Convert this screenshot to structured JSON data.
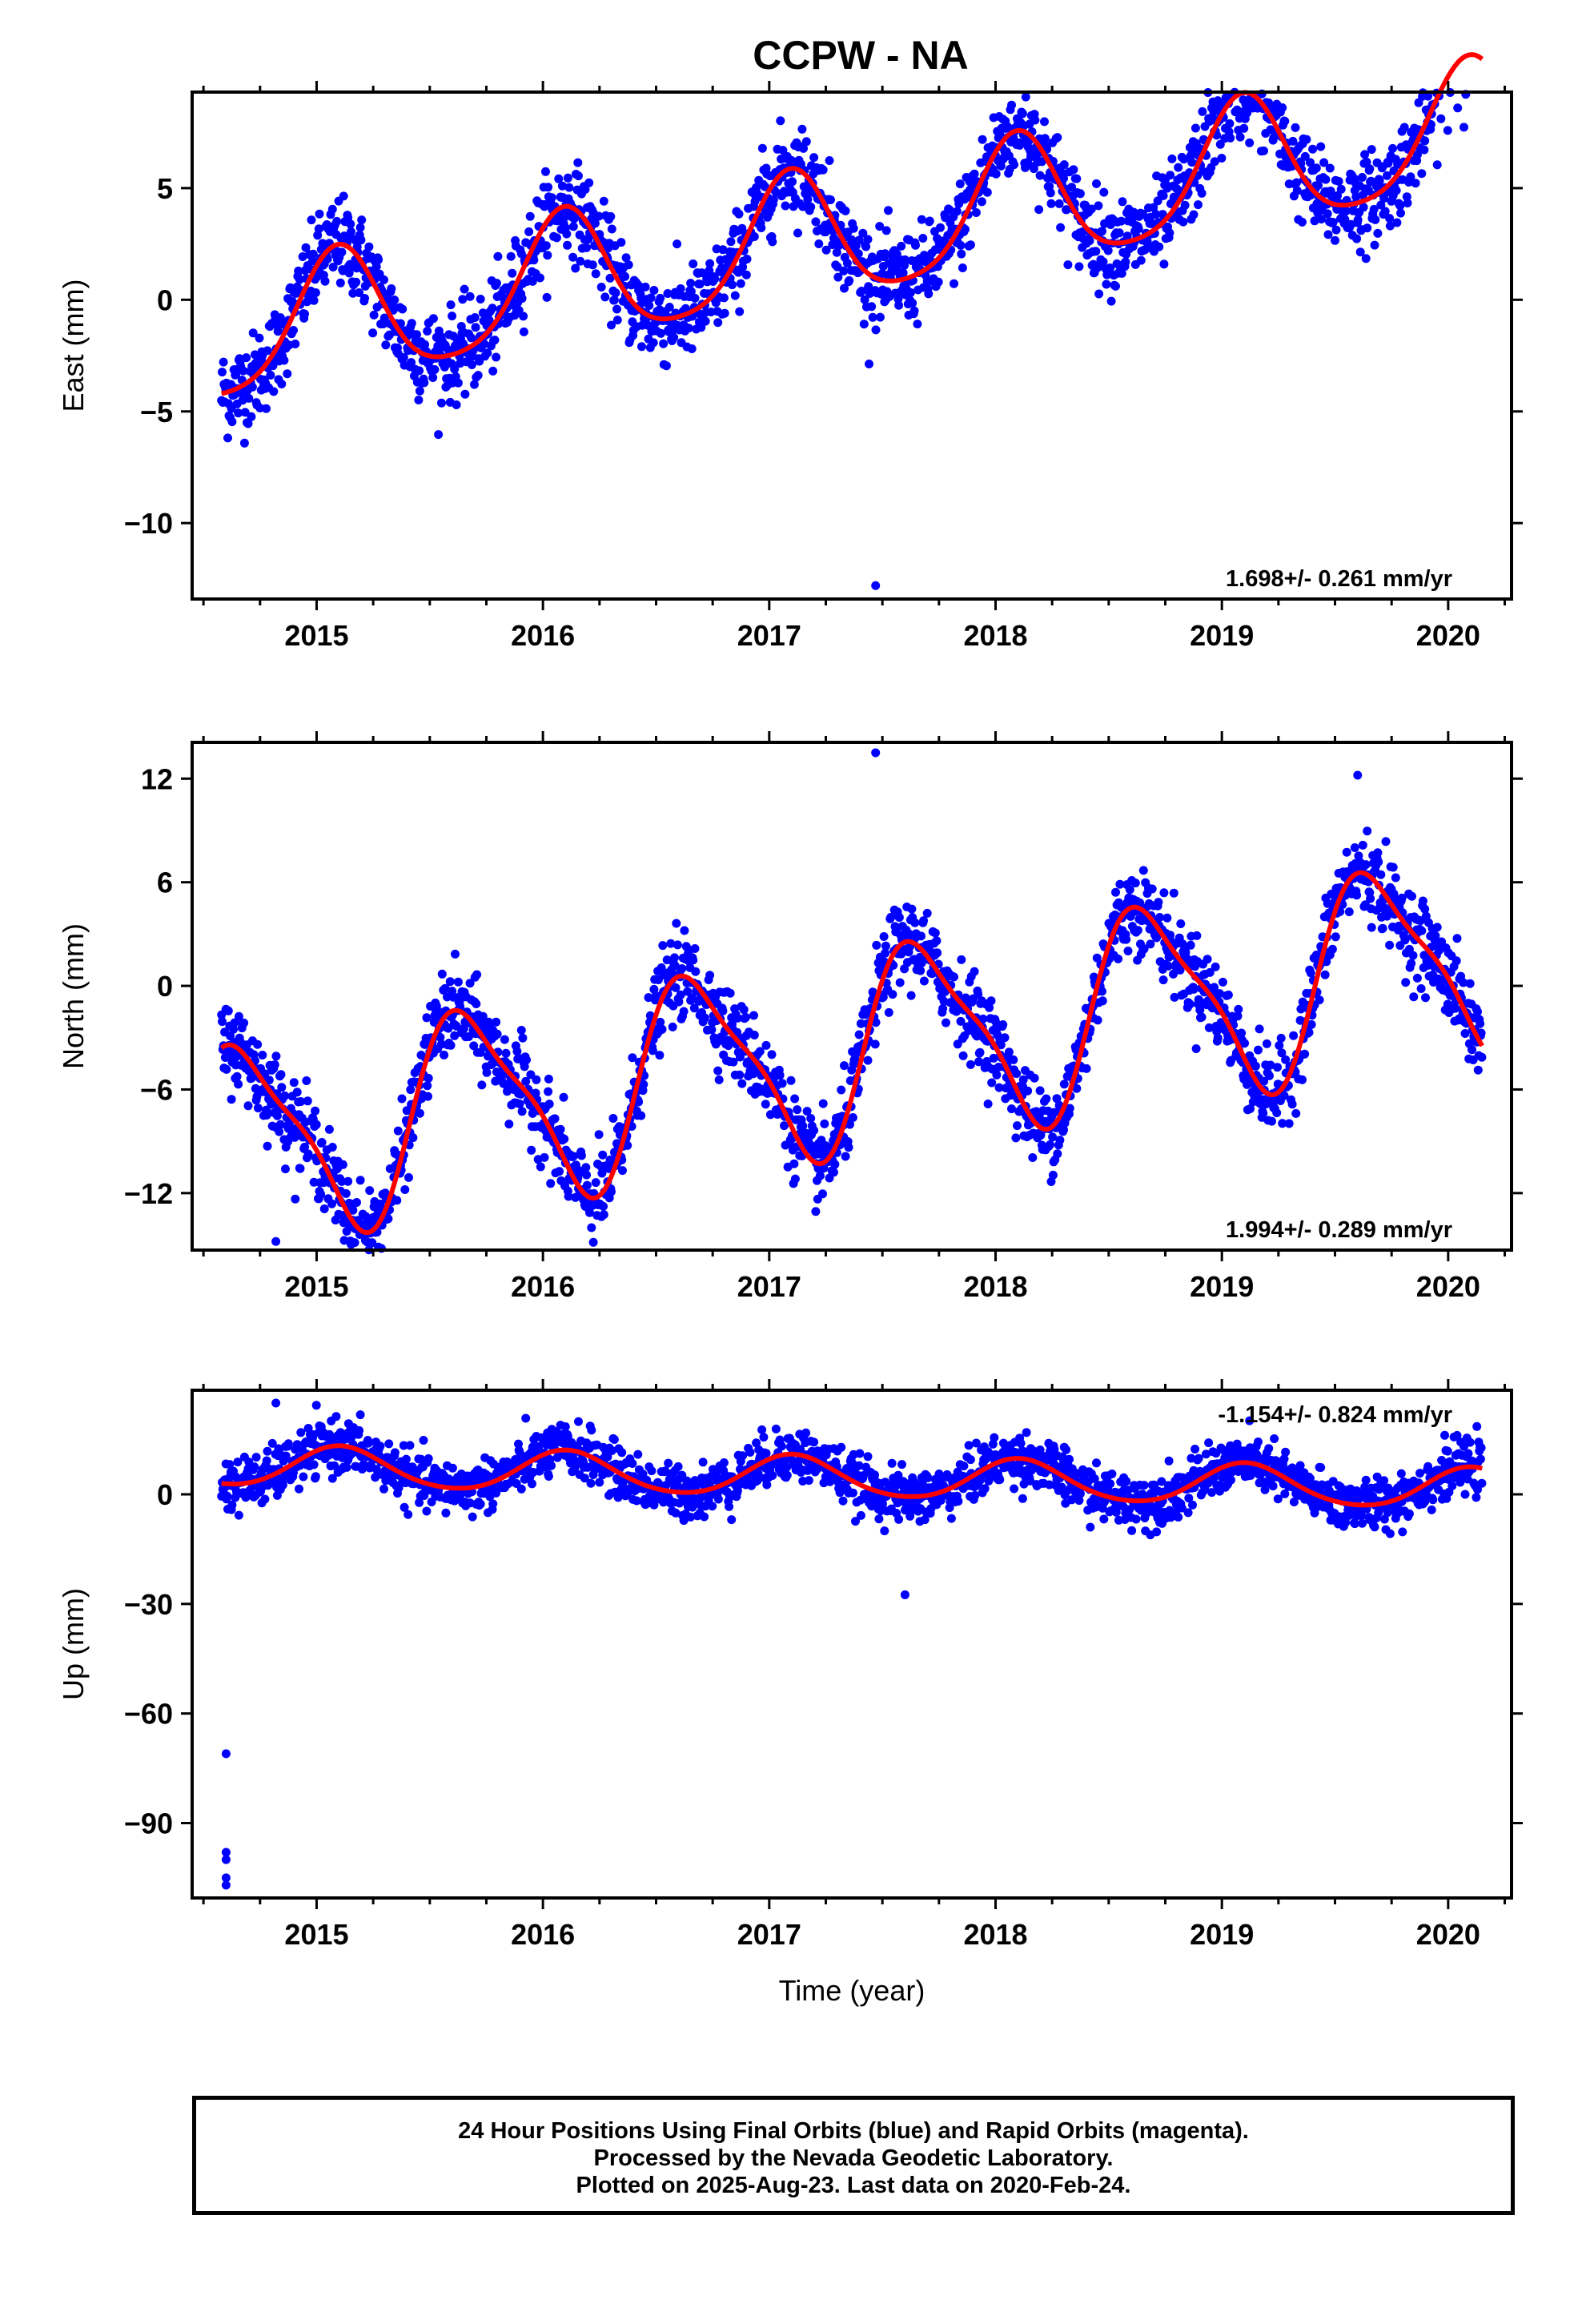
{
  "title": "CCPW - NA",
  "colors": {
    "data_points": "#0000ff",
    "fit_line": "#ff0000",
    "frame": "#000000"
  },
  "footer": {
    "line1": "24 Hour Positions Using Final Orbits (blue) and Rapid Orbits (magenta).",
    "line2": "Processed by the Nevada Geodetic Laboratory.",
    "line3": "Plotted on 2025-Aug-23. Last data on 2020-Feb-24."
  },
  "chart_data": [
    {
      "type": "scatter",
      "name": "east",
      "ylabel": "East (mm)",
      "xlabel": "",
      "xlim": [
        2014.45,
        2020.28
      ],
      "ylim": [
        -13.4,
        9.3
      ],
      "x_ticks": [
        "2015",
        "2016",
        "2017",
        "2018",
        "2019",
        "2020"
      ],
      "y_ticks": [
        "5",
        "0",
        "−5",
        "−10"
      ],
      "y_tick_values": [
        5,
        0,
        -5,
        -10
      ],
      "rate_text": "1.698+/- 0.261 mm/yr",
      "rate_position": "bottom-right",
      "model": {
        "t0": 2014.58,
        "t_end": 2020.15,
        "offset": -4.2,
        "rate": 1.698,
        "annual_amp": 2.9,
        "annual_phase": 1.0,
        "semiannual_amp": 0.5,
        "semiannual_phase": 0.3
      },
      "noise_sigma": 1.0,
      "outliers": [
        {
          "x": 2017.47,
          "y": -12.8
        }
      ],
      "data_span": [
        2014.58,
        2020.15
      ]
    },
    {
      "type": "scatter",
      "name": "north",
      "ylabel": "North (mm)",
      "xlabel": "",
      "xlim": [
        2014.45,
        2020.28
      ],
      "ylim": [
        -15.3,
        14.1
      ],
      "x_ticks": [
        "2015",
        "2016",
        "2017",
        "2018",
        "2019",
        "2020"
      ],
      "y_ticks": [
        "12",
        "6",
        "0",
        "−6",
        "−12"
      ],
      "y_tick_values": [
        12,
        6,
        0,
        -6,
        -12
      ],
      "rate_text": "1.994+/- 0.289 mm/yr",
      "rate_position": "bottom-right",
      "model": {
        "t0": 2014.58,
        "t_end": 2020.15,
        "offset": -3.6,
        "rate": 1.994,
        "annual_amp": 5.5,
        "annual_phase": 3.6,
        "semiannual_amp": 1.4,
        "semiannual_phase": 1.2
      },
      "noise_sigma": 1.2,
      "outliers": [
        {
          "x": 2014.82,
          "y": -14.8
        },
        {
          "x": 2017.47,
          "y": 13.5
        },
        {
          "x": 2019.6,
          "y": 12.2
        }
      ],
      "data_span": [
        2014.58,
        2020.15
      ]
    },
    {
      "type": "scatter",
      "name": "up",
      "ylabel": "Up (mm)",
      "xlabel": "Time (year)",
      "xlim": [
        2014.45,
        2020.28
      ],
      "ylim": [
        -110.5,
        28.5
      ],
      "x_ticks": [
        "2015",
        "2016",
        "2017",
        "2018",
        "2019",
        "2020"
      ],
      "y_ticks": [
        "0",
        "−30",
        "−60",
        "−90"
      ],
      "y_tick_values": [
        0,
        -30,
        -60,
        -90
      ],
      "rate_text": "-1.154+/- 0.824 mm/yr",
      "rate_position": "top-right",
      "model": {
        "t0": 2014.58,
        "t_end": 2020.15,
        "offset": 3.0,
        "rate": -1.154,
        "annual_amp": 5.5,
        "annual_phase": 0.9,
        "semiannual_amp": 0.6,
        "semiannual_phase": 0.5
      },
      "noise_sigma": 3.5,
      "outliers": [
        {
          "x": 2014.6,
          "y": -71
        },
        {
          "x": 2014.6,
          "y": -98
        },
        {
          "x": 2014.6,
          "y": -100
        },
        {
          "x": 2014.6,
          "y": -105
        },
        {
          "x": 2014.6,
          "y": -107
        },
        {
          "x": 2017.6,
          "y": -27.5
        },
        {
          "x": 2014.82,
          "y": 25
        }
      ],
      "data_span": [
        2014.58,
        2020.15
      ]
    }
  ]
}
